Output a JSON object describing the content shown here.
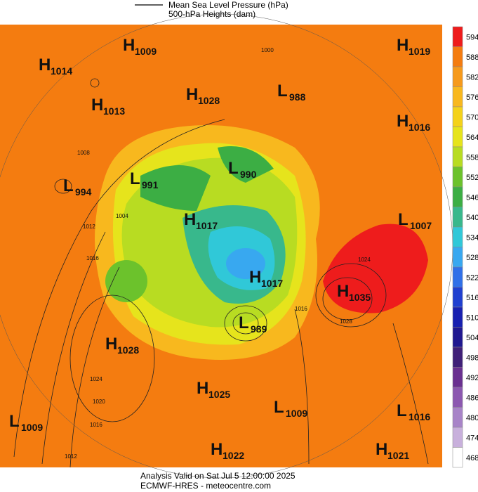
{
  "legend": [
    "Mean Sea Level Pressure (hPa)",
    "500-hPa Heights (dam)"
  ],
  "colorbar": {
    "values": [
      594,
      588,
      582,
      576,
      570,
      564,
      558,
      552,
      546,
      540,
      534,
      528,
      522,
      516,
      510,
      504,
      498,
      492,
      486,
      480,
      474,
      468
    ],
    "colors": [
      "#ee1c1c",
      "#f47c10",
      "#f69a1c",
      "#f8b81e",
      "#f4d21a",
      "#e6e41c",
      "#b8dc22",
      "#6cc22c",
      "#3cae44",
      "#38b88c",
      "#30c8d8",
      "#38a8f0",
      "#3070e8",
      "#2040d0",
      "#1820b0",
      "#201890",
      "#402078",
      "#6a3090",
      "#8c58b0",
      "#a884c8",
      "#c8b0dc",
      "#ffffff"
    ]
  },
  "centers": [
    {
      "letter": "H",
      "value": 1009
    },
    {
      "letter": "H",
      "value": 1014
    },
    {
      "letter": "H",
      "value": 1013
    },
    {
      "letter": "H",
      "value": 1028
    },
    {
      "letter": "L",
      "value": 988
    },
    {
      "letter": "H",
      "value": 1019
    },
    {
      "letter": "H",
      "value": 1016
    },
    {
      "letter": "L",
      "value": 990
    },
    {
      "letter": "L",
      "value": 994
    },
    {
      "letter": "L",
      "value": 991
    },
    {
      "letter": "H",
      "value": 1017
    },
    {
      "letter": "L",
      "value": 1007
    },
    {
      "letter": "H",
      "value": 1017
    },
    {
      "letter": "H",
      "value": 1035
    },
    {
      "letter": "L",
      "value": 989
    },
    {
      "letter": "H",
      "value": 1028
    },
    {
      "letter": "H",
      "value": 1025
    },
    {
      "letter": "L",
      "value": 1009
    },
    {
      "letter": "L",
      "value": 1016
    },
    {
      "letter": "L",
      "value": 1009
    },
    {
      "letter": "H",
      "value": 1022
    },
    {
      "letter": "H",
      "value": 1021
    }
  ],
  "contour_labels": [
    1000,
    1008,
    1004,
    1012,
    1016,
    1024,
    1020,
    1016,
    1012,
    1028,
    1024,
    1016
  ],
  "footer": [
    "Analysis Valid on Sat Jul  5 12:00:00 2025",
    "ECMWF-HRES  - meteocentre.com"
  ]
}
